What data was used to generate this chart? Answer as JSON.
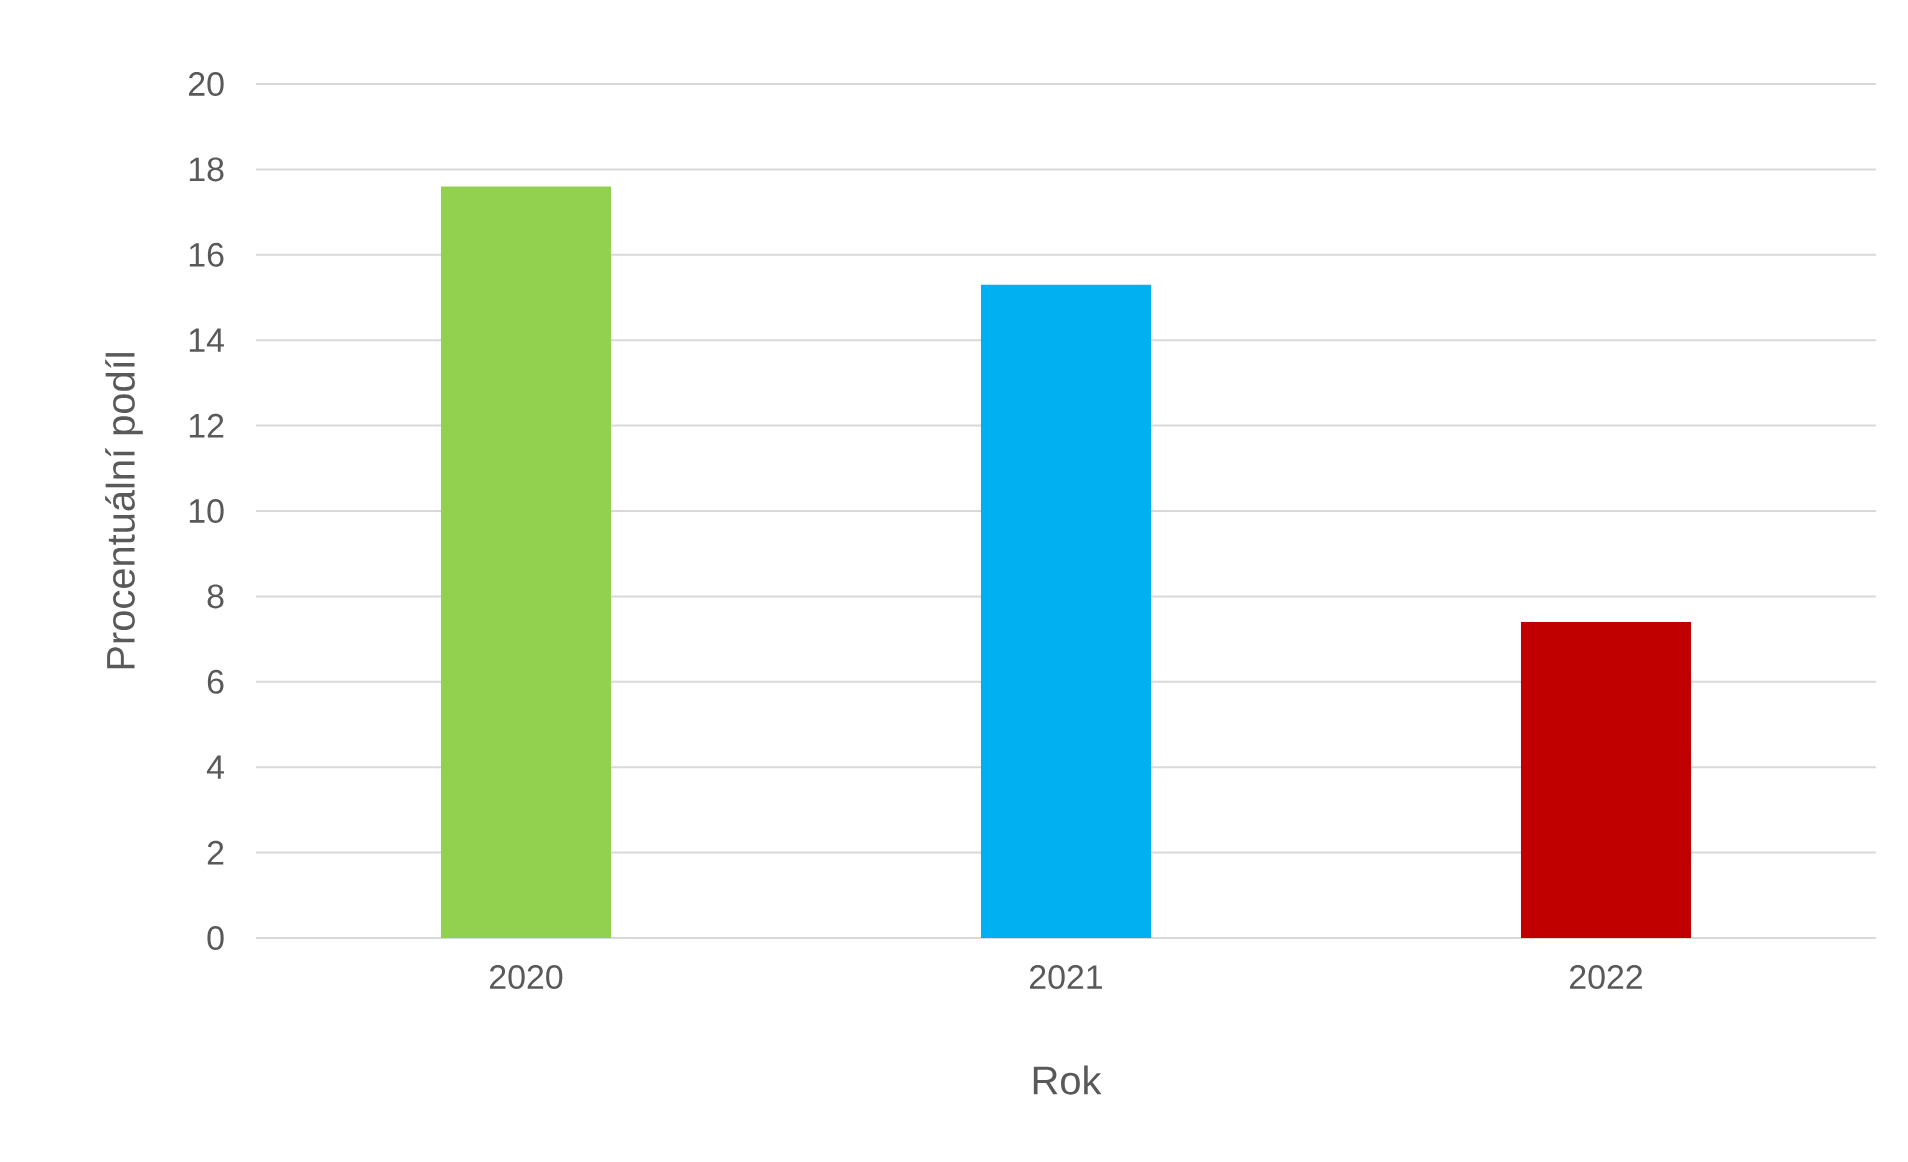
{
  "chart_data": {
    "type": "bar",
    "xlabel": "Rok",
    "ylabel": "Procentuální podíl",
    "categories": [
      "2020",
      "2021",
      "2022"
    ],
    "values": [
      17.6,
      15.3,
      7.4
    ],
    "colors": [
      "#92d050",
      "#00b0f0",
      "#c00000"
    ],
    "ylim": [
      0,
      20
    ],
    "yticks": [
      0,
      2,
      4,
      6,
      8,
      10,
      12,
      14,
      16,
      18,
      20
    ],
    "grid": "y"
  }
}
